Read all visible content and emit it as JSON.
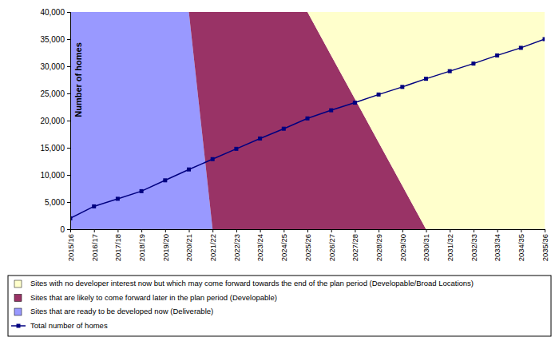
{
  "chart_data": {
    "type": "area",
    "stacked": true,
    "legend": "bottom",
    "grid": false,
    "y_label": "Number of homes",
    "categories": [
      "2015/16",
      "2016/17",
      "2017/18",
      "2018/19",
      "2019/20",
      "2020/21",
      "2021/22",
      "2022/23",
      "2023/24",
      "2024/25",
      "2025/26",
      "2026/27",
      "2027/28",
      "2028/29",
      "2029/30",
      "2030/31",
      "2031/32",
      "2032/33",
      "2033/34",
      "2034/35",
      "2035/36"
    ],
    "ylim": [
      0,
      40000
    ],
    "yticks": [
      0,
      {
        "value": 5000,
        "label": "5,000"
      },
      {
        "value": 10000,
        "label": "10,000"
      },
      {
        "value": 15000,
        "label": "15,000"
      },
      {
        "value": 20000,
        "label": "20,000"
      },
      {
        "value": 25000,
        "label": "25,000"
      },
      {
        "value": 30000,
        "label": "30,000"
      },
      {
        "value": 35000,
        "label": "35,000"
      },
      {
        "value": 40000,
        "label": "40,000"
      }
    ],
    "series": [
      {
        "name": "Sites that are ready to be developed now (Deliverable)",
        "type": "area",
        "color": "#9999ff",
        "values": [
          40000,
          40000,
          40000,
          40000,
          40000,
          40000,
          0,
          0,
          0,
          0,
          0,
          0,
          0,
          0,
          0,
          0,
          0,
          0,
          0,
          0,
          0
        ]
      },
      {
        "name": "Sites that are likely to come forward later in the plan period (Developable)",
        "type": "area",
        "color": "#993366",
        "values": [
          0,
          0,
          0,
          0,
          0,
          0,
          40000,
          40000,
          40000,
          40000,
          40000,
          32000,
          24000,
          16000,
          8000,
          0,
          0,
          0,
          0,
          0,
          0
        ]
      },
      {
        "name": "Sites with no developer interest now but which may come forward towards the end of the plan period (Developable/Broad Locations)",
        "type": "area",
        "color": "#ffffcc",
        "values": [
          0,
          0,
          0,
          0,
          0,
          0,
          0,
          0,
          0,
          0,
          0,
          8000,
          16000,
          24000,
          32000,
          40000,
          40000,
          40000,
          40000,
          40000,
          40000
        ]
      },
      {
        "name": "Total number of homes",
        "type": "line",
        "color": "#000080",
        "marker": "square",
        "line_style": "solid",
        "values": [
          2000,
          4200,
          5600,
          7000,
          9000,
          11000,
          12900,
          14800,
          16700,
          18500,
          20400,
          21900,
          23300,
          24800,
          26200,
          27700,
          29100,
          30500,
          32000,
          33400,
          35000
        ]
      }
    ]
  }
}
